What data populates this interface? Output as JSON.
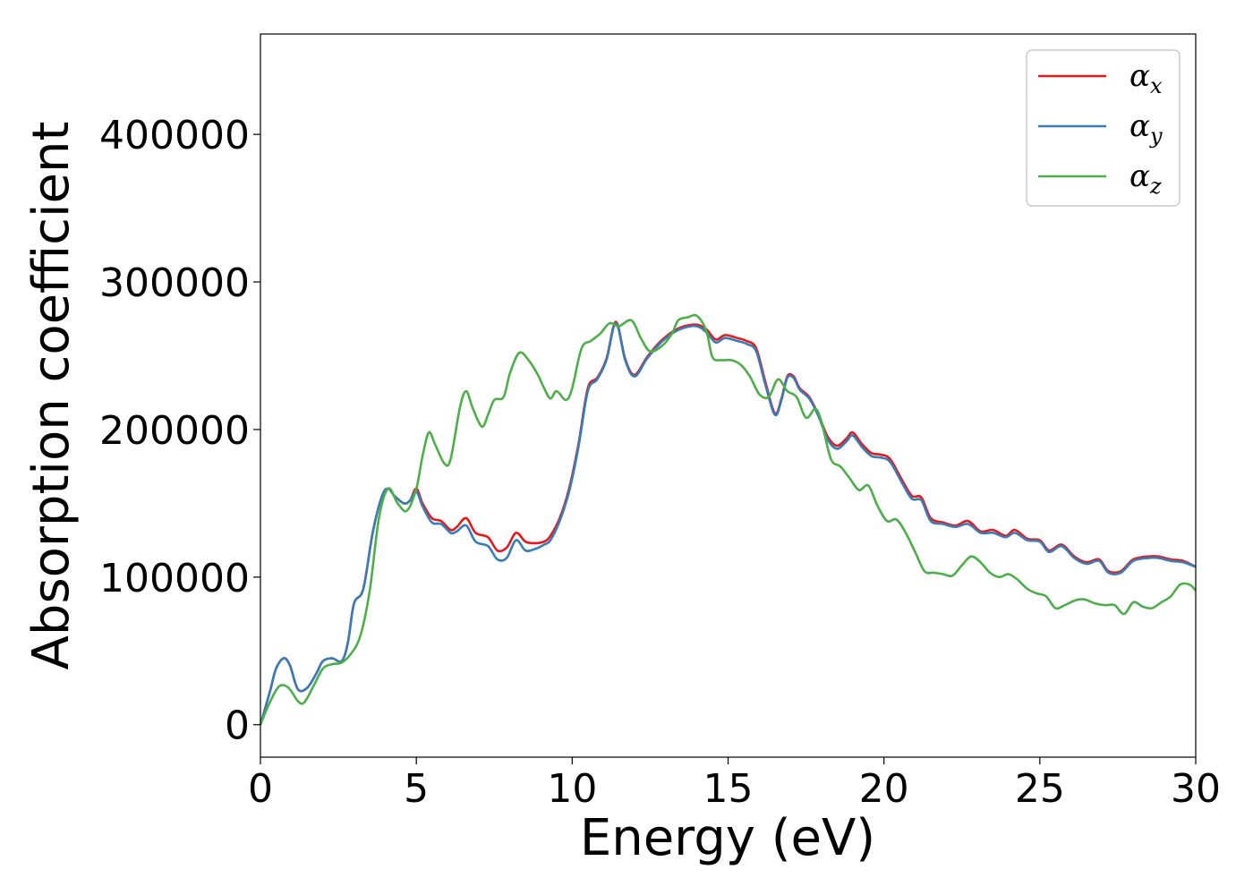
{
  "chart_data": {
    "type": "line",
    "xlabel": "Energy (eV)",
    "ylabel": "Absorption coefficient",
    "xlim": [
      0,
      30
    ],
    "ylim": [
      -22000,
      468000
    ],
    "xticks": [
      0,
      5,
      10,
      15,
      20,
      25,
      30
    ],
    "xtick_labels": [
      "0",
      "5",
      "10",
      "15",
      "20",
      "25",
      "30"
    ],
    "yticks": [
      0,
      100000,
      200000,
      300000,
      400000
    ],
    "ytick_labels": [
      "0",
      "100000",
      "200000",
      "300000",
      "400000"
    ],
    "grid": false,
    "legend_position": "top-right",
    "series": [
      {
        "name": "α",
        "subscript": "x",
        "color": "#e41a1c",
        "points": [
          [
            0,
            0
          ],
          [
            0.3,
            22000
          ],
          [
            0.5,
            38000
          ],
          [
            0.75,
            45000
          ],
          [
            0.95,
            40000
          ],
          [
            1.2,
            24000
          ],
          [
            1.5,
            25000
          ],
          [
            1.8,
            35000
          ],
          [
            2.0,
            43000
          ],
          [
            2.3,
            45000
          ],
          [
            2.6,
            43000
          ],
          [
            2.8,
            55000
          ],
          [
            3.0,
            82000
          ],
          [
            3.3,
            92000
          ],
          [
            3.6,
            130000
          ],
          [
            3.9,
            155000
          ],
          [
            4.1,
            160000
          ],
          [
            4.3,
            155000
          ],
          [
            4.6,
            150000
          ],
          [
            4.8,
            152000
          ],
          [
            5.0,
            160000
          ],
          [
            5.2,
            150000
          ],
          [
            5.5,
            140000
          ],
          [
            5.8,
            138000
          ],
          [
            6.1,
            132000
          ],
          [
            6.3,
            134000
          ],
          [
            6.6,
            140000
          ],
          [
            6.9,
            130000
          ],
          [
            7.3,
            127000
          ],
          [
            7.6,
            118000
          ],
          [
            7.9,
            120000
          ],
          [
            8.2,
            130000
          ],
          [
            8.5,
            124000
          ],
          [
            8.8,
            123000
          ],
          [
            9.1,
            124000
          ],
          [
            9.3,
            128000
          ],
          [
            9.6,
            140000
          ],
          [
            9.9,
            160000
          ],
          [
            10.2,
            190000
          ],
          [
            10.5,
            228000
          ],
          [
            10.8,
            235000
          ],
          [
            11.1,
            248000
          ],
          [
            11.4,
            273000
          ],
          [
            11.7,
            248000
          ],
          [
            12.0,
            237000
          ],
          [
            12.4,
            249000
          ],
          [
            12.8,
            259000
          ],
          [
            13.2,
            266000
          ],
          [
            13.6,
            270000
          ],
          [
            14.0,
            271000
          ],
          [
            14.3,
            268000
          ],
          [
            14.6,
            261000
          ],
          [
            14.9,
            264000
          ],
          [
            15.3,
            262000
          ],
          [
            15.6,
            260000
          ],
          [
            15.9,
            255000
          ],
          [
            16.2,
            232000
          ],
          [
            16.5,
            211000
          ],
          [
            16.7,
            220000
          ],
          [
            16.9,
            236000
          ],
          [
            17.1,
            236000
          ],
          [
            17.3,
            228000
          ],
          [
            17.6,
            222000
          ],
          [
            17.9,
            210000
          ],
          [
            18.2,
            195000
          ],
          [
            18.5,
            189000
          ],
          [
            18.8,
            194000
          ],
          [
            19.0,
            198000
          ],
          [
            19.3,
            190000
          ],
          [
            19.6,
            184000
          ],
          [
            19.9,
            183000
          ],
          [
            20.2,
            180000
          ],
          [
            20.6,
            165000
          ],
          [
            20.9,
            155000
          ],
          [
            21.2,
            154000
          ],
          [
            21.5,
            140000
          ],
          [
            21.9,
            137000
          ],
          [
            22.3,
            135000
          ],
          [
            22.7,
            138000
          ],
          [
            23.1,
            131000
          ],
          [
            23.5,
            132000
          ],
          [
            23.9,
            128000
          ],
          [
            24.2,
            132000
          ],
          [
            24.6,
            126000
          ],
          [
            25.0,
            125000
          ],
          [
            25.3,
            118000
          ],
          [
            25.7,
            122000
          ],
          [
            26.1,
            114000
          ],
          [
            26.5,
            110000
          ],
          [
            26.9,
            112000
          ],
          [
            27.2,
            104000
          ],
          [
            27.6,
            104000
          ],
          [
            28.0,
            112000
          ],
          [
            28.5,
            114000
          ],
          [
            28.8,
            114000
          ],
          [
            29.2,
            112000
          ],
          [
            29.6,
            111000
          ],
          [
            30.0,
            107000
          ]
        ]
      },
      {
        "name": "α",
        "subscript": "y",
        "color": "#377eb8",
        "points": [
          [
            0,
            0
          ],
          [
            0.3,
            22000
          ],
          [
            0.5,
            38000
          ],
          [
            0.75,
            45000
          ],
          [
            0.95,
            40000
          ],
          [
            1.2,
            24000
          ],
          [
            1.5,
            25000
          ],
          [
            1.8,
            35000
          ],
          [
            2.0,
            43000
          ],
          [
            2.3,
            45000
          ],
          [
            2.6,
            43000
          ],
          [
            2.8,
            55000
          ],
          [
            3.0,
            82000
          ],
          [
            3.3,
            92000
          ],
          [
            3.6,
            130000
          ],
          [
            3.9,
            155000
          ],
          [
            4.1,
            160000
          ],
          [
            4.3,
            155000
          ],
          [
            4.6,
            150000
          ],
          [
            4.8,
            152000
          ],
          [
            5.0,
            158000
          ],
          [
            5.2,
            148000
          ],
          [
            5.5,
            137000
          ],
          [
            5.8,
            136000
          ],
          [
            6.1,
            130000
          ],
          [
            6.3,
            131000
          ],
          [
            6.6,
            135000
          ],
          [
            6.9,
            124000
          ],
          [
            7.3,
            121000
          ],
          [
            7.6,
            112000
          ],
          [
            7.9,
            113000
          ],
          [
            8.2,
            125000
          ],
          [
            8.5,
            118000
          ],
          [
            8.8,
            119000
          ],
          [
            9.1,
            122000
          ],
          [
            9.3,
            125000
          ],
          [
            9.6,
            138000
          ],
          [
            9.9,
            158000
          ],
          [
            10.2,
            188000
          ],
          [
            10.5,
            226000
          ],
          [
            10.8,
            234000
          ],
          [
            11.1,
            247000
          ],
          [
            11.4,
            272000
          ],
          [
            11.7,
            247000
          ],
          [
            12.0,
            236000
          ],
          [
            12.4,
            248000
          ],
          [
            12.8,
            258000
          ],
          [
            13.2,
            265000
          ],
          [
            13.6,
            269000
          ],
          [
            14.0,
            270000
          ],
          [
            14.3,
            266000
          ],
          [
            14.6,
            259000
          ],
          [
            14.9,
            262000
          ],
          [
            15.3,
            260000
          ],
          [
            15.6,
            258000
          ],
          [
            15.9,
            253000
          ],
          [
            16.2,
            230000
          ],
          [
            16.5,
            210000
          ],
          [
            16.7,
            219000
          ],
          [
            16.9,
            235000
          ],
          [
            17.1,
            235000
          ],
          [
            17.3,
            227000
          ],
          [
            17.6,
            221000
          ],
          [
            17.9,
            209000
          ],
          [
            18.2,
            193000
          ],
          [
            18.5,
            187000
          ],
          [
            18.8,
            192000
          ],
          [
            19.0,
            196000
          ],
          [
            19.3,
            188000
          ],
          [
            19.6,
            182000
          ],
          [
            19.9,
            181000
          ],
          [
            20.2,
            178000
          ],
          [
            20.6,
            163000
          ],
          [
            20.9,
            153000
          ],
          [
            21.2,
            152000
          ],
          [
            21.5,
            138000
          ],
          [
            21.9,
            136000
          ],
          [
            22.3,
            134000
          ],
          [
            22.7,
            136000
          ],
          [
            23.1,
            130000
          ],
          [
            23.5,
            130000
          ],
          [
            23.9,
            127000
          ],
          [
            24.2,
            130000
          ],
          [
            24.6,
            125000
          ],
          [
            25.0,
            124000
          ],
          [
            25.3,
            117000
          ],
          [
            25.7,
            121000
          ],
          [
            26.1,
            113000
          ],
          [
            26.5,
            109000
          ],
          [
            26.9,
            111000
          ],
          [
            27.2,
            103000
          ],
          [
            27.6,
            103000
          ],
          [
            28.0,
            111000
          ],
          [
            28.5,
            113000
          ],
          [
            28.8,
            113000
          ],
          [
            29.2,
            111000
          ],
          [
            29.6,
            110000
          ],
          [
            30.0,
            107000
          ]
        ]
      },
      {
        "name": "α",
        "subscript": "z",
        "color": "#4daf4a",
        "points": [
          [
            0,
            0
          ],
          [
            0.3,
            15000
          ],
          [
            0.6,
            26000
          ],
          [
            0.9,
            25000
          ],
          [
            1.2,
            16000
          ],
          [
            1.4,
            15000
          ],
          [
            1.7,
            26000
          ],
          [
            2.0,
            38000
          ],
          [
            2.3,
            41000
          ],
          [
            2.6,
            42000
          ],
          [
            2.9,
            48000
          ],
          [
            3.2,
            60000
          ],
          [
            3.5,
            90000
          ],
          [
            3.8,
            140000
          ],
          [
            4.1,
            160000
          ],
          [
            4.4,
            150000
          ],
          [
            4.7,
            145000
          ],
          [
            5.0,
            160000
          ],
          [
            5.2,
            182000
          ],
          [
            5.4,
            198000
          ],
          [
            5.6,
            190000
          ],
          [
            5.9,
            177000
          ],
          [
            6.1,
            180000
          ],
          [
            6.4,
            215000
          ],
          [
            6.6,
            226000
          ],
          [
            6.8,
            215000
          ],
          [
            7.1,
            202000
          ],
          [
            7.3,
            210000
          ],
          [
            7.5,
            220000
          ],
          [
            7.8,
            222000
          ],
          [
            8.0,
            238000
          ],
          [
            8.3,
            252000
          ],
          [
            8.6,
            247000
          ],
          [
            8.9,
            237000
          ],
          [
            9.1,
            228000
          ],
          [
            9.3,
            221000
          ],
          [
            9.5,
            226000
          ],
          [
            9.8,
            220000
          ],
          [
            10.0,
            228000
          ],
          [
            10.3,
            255000
          ],
          [
            10.6,
            260000
          ],
          [
            10.9,
            265000
          ],
          [
            11.2,
            272000
          ],
          [
            11.5,
            270000
          ],
          [
            11.9,
            274000
          ],
          [
            12.2,
            262000
          ],
          [
            12.5,
            253000
          ],
          [
            12.9,
            257000
          ],
          [
            13.2,
            265000
          ],
          [
            13.4,
            274000
          ],
          [
            13.7,
            276000
          ],
          [
            14.0,
            277000
          ],
          [
            14.3,
            267000
          ],
          [
            14.5,
            249000
          ],
          [
            14.8,
            247000
          ],
          [
            15.1,
            247000
          ],
          [
            15.4,
            244000
          ],
          [
            15.7,
            236000
          ],
          [
            16.0,
            224000
          ],
          [
            16.3,
            222000
          ],
          [
            16.6,
            234000
          ],
          [
            16.9,
            226000
          ],
          [
            17.2,
            222000
          ],
          [
            17.5,
            208000
          ],
          [
            17.8,
            214000
          ],
          [
            18.0,
            205000
          ],
          [
            18.3,
            180000
          ],
          [
            18.6,
            175000
          ],
          [
            18.9,
            167000
          ],
          [
            19.2,
            159000
          ],
          [
            19.5,
            162000
          ],
          [
            19.8,
            148000
          ],
          [
            20.1,
            138000
          ],
          [
            20.4,
            139000
          ],
          [
            20.7,
            130000
          ],
          [
            21.0,
            117000
          ],
          [
            21.3,
            104000
          ],
          [
            21.6,
            103000
          ],
          [
            21.9,
            102000
          ],
          [
            22.2,
            101000
          ],
          [
            22.5,
            108000
          ],
          [
            22.8,
            114000
          ],
          [
            23.1,
            110000
          ],
          [
            23.4,
            103000
          ],
          [
            23.7,
            100000
          ],
          [
            24.0,
            102000
          ],
          [
            24.3,
            98000
          ],
          [
            24.6,
            92000
          ],
          [
            24.9,
            89000
          ],
          [
            25.2,
            87000
          ],
          [
            25.5,
            79000
          ],
          [
            25.8,
            81000
          ],
          [
            26.1,
            84000
          ],
          [
            26.4,
            85000
          ],
          [
            26.8,
            82000
          ],
          [
            27.1,
            81000
          ],
          [
            27.4,
            81000
          ],
          [
            27.7,
            75000
          ],
          [
            28.0,
            83000
          ],
          [
            28.3,
            80000
          ],
          [
            28.6,
            79000
          ],
          [
            28.9,
            83000
          ],
          [
            29.2,
            87000
          ],
          [
            29.5,
            95000
          ],
          [
            29.8,
            95000
          ],
          [
            30.0,
            91000
          ]
        ]
      }
    ]
  }
}
